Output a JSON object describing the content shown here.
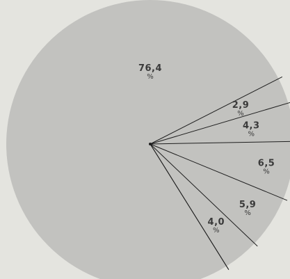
{
  "chart_data": {
    "type": "pie",
    "unit_symbol": "%",
    "slices": [
      {
        "label": "76,4",
        "value": 76.4
      },
      {
        "label": "2,9",
        "value": 2.9
      },
      {
        "label": "4,3",
        "value": 4.3
      },
      {
        "label": "6,5",
        "value": 6.5
      },
      {
        "label": "5,9",
        "value": 5.9
      },
      {
        "label": "4,0",
        "value": 4.0
      }
    ],
    "colors": {
      "fill": "#c2c2bf",
      "divider": "#1e1e1e",
      "text": "#3a3a3a",
      "background": "#e4e4df"
    },
    "legend": "none",
    "grid": false
  }
}
